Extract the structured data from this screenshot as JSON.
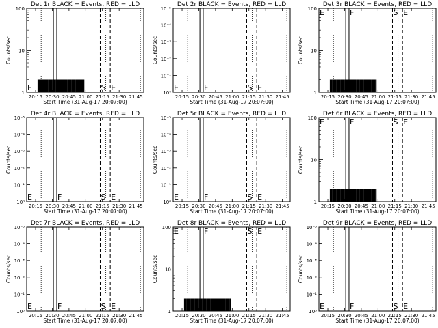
{
  "figure": {
    "panel_titles": [
      "Det 1r BLACK = Events, RED = LLD",
      "Det 2r BLACK = Events, RED = LLD",
      "Det 3r BLACK = Events, RED = LLD",
      "Det 4r BLACK = Events, RED = LLD",
      "Det 5r BLACK = Events, RED = LLD",
      "Det 6r BLACK = Events, RED = LLD",
      "Det 7r BLACK = Events, RED = LLD",
      "Det 8r BLACK = Events, RED = LLD",
      "Det 9r BLACK = Events, RED = LLD"
    ],
    "xlabel": "Start Time (31-Aug-17 20:07:00)",
    "ylabel": "Counts/sec",
    "xticklabels": [
      "20:15",
      "20:30",
      "20:45",
      "21:00",
      "21:15",
      "21:30",
      "21:45"
    ],
    "marker_letters": {
      "E": "E",
      "F": "F",
      "S": "S"
    },
    "colors": {
      "events": "#000000",
      "lld": "#ff0000",
      "background": "#ffffff"
    }
  },
  "chart_data": [
    {
      "panel": "Det 1r",
      "type": "line",
      "yscale": "log",
      "ylim": [
        1,
        100
      ],
      "xlim_minutes": [
        0,
        105
      ],
      "yticklabels": [
        "1",
        "10",
        "100"
      ],
      "markers": [
        {
          "letter": "E",
          "time": 0
        },
        {
          "letter": "F",
          "time": 27
        },
        {
          "letter": "S",
          "time": 66
        },
        {
          "letter": "E",
          "time": 75
        }
      ],
      "dotted_lines": [
        13,
        71,
        102
      ],
      "solid_lines": [
        24,
        27
      ],
      "dashed_lines": [
        66,
        75
      ],
      "series": [
        {
          "segments": [
            {
              "start": 10,
              "end": 15,
              "level": 2
            },
            {
              "start": 15,
              "end": 30,
              "level": 2
            },
            {
              "start": 30,
              "end": 42,
              "level": 2
            },
            {
              "start": 42,
              "end": 52,
              "level": 2
            }
          ]
        }
      ]
    },
    {
      "panel": "Det 2r",
      "type": "line",
      "yscale": "log",
      "ylim": [
        1,
        100
      ],
      "xlim_minutes": [
        0,
        105
      ],
      "yticklabels": [
        "10⁰",
        "10⁻¹",
        "10⁻²",
        "10⁻³",
        "10⁻⁴",
        "10⁻⁵"
      ],
      "markers": [
        {
          "letter": "E",
          "time": 0
        },
        {
          "letter": "F",
          "time": 27
        },
        {
          "letter": "S",
          "time": 66
        },
        {
          "letter": "E",
          "time": 75
        }
      ],
      "dotted_lines": [
        13,
        71,
        102
      ],
      "solid_lines": [
        24,
        27
      ],
      "dashed_lines": [
        66,
        75
      ],
      "series": []
    },
    {
      "panel": "Det 3r",
      "type": "line",
      "yscale": "log",
      "ylim": [
        1,
        100
      ],
      "xlim_minutes": [
        0,
        105
      ],
      "yticklabels": [
        "1",
        "10",
        "100"
      ],
      "markers": [
        {
          "letter": "E",
          "time": 0
        },
        {
          "letter": "F",
          "time": 27
        },
        {
          "letter": "S",
          "time": 66
        },
        {
          "letter": "E",
          "time": 75
        }
      ],
      "dotted_lines": [
        13,
        71,
        102
      ],
      "solid_lines": [
        24,
        27
      ],
      "dashed_lines": [
        66,
        75
      ],
      "series": [
        {
          "segments": [
            {
              "start": 10,
              "end": 15,
              "level": 2
            },
            {
              "start": 15,
              "end": 30,
              "level": 2
            },
            {
              "start": 30,
              "end": 42,
              "level": 2
            },
            {
              "start": 42,
              "end": 52,
              "level": 2
            }
          ]
        }
      ]
    },
    {
      "panel": "Det 4r",
      "type": "line",
      "yscale": "log",
      "ylim": [
        1,
        100
      ],
      "xlim_minutes": [
        0,
        105
      ],
      "yticklabels": [
        "10⁰",
        "10⁻¹",
        "10⁻²",
        "10⁻³",
        "10⁻⁴",
        "10⁻⁵"
      ],
      "markers": [
        {
          "letter": "E",
          "time": 0
        },
        {
          "letter": "F",
          "time": 27
        },
        {
          "letter": "S",
          "time": 66
        },
        {
          "letter": "E",
          "time": 75
        }
      ],
      "dotted_lines": [
        13,
        71,
        102
      ],
      "solid_lines": [
        24,
        27
      ],
      "dashed_lines": [
        66,
        75
      ],
      "series": []
    },
    {
      "panel": "Det 5r",
      "type": "line",
      "yscale": "log",
      "ylim": [
        1,
        100
      ],
      "xlim_minutes": [
        0,
        105
      ],
      "yticklabels": [
        "10⁰",
        "10⁻¹",
        "10⁻²",
        "10⁻³",
        "10⁻⁴",
        "10⁻⁵"
      ],
      "markers": [
        {
          "letter": "E",
          "time": 0
        },
        {
          "letter": "F",
          "time": 27
        },
        {
          "letter": "S",
          "time": 66
        },
        {
          "letter": "E",
          "time": 75
        }
      ],
      "dotted_lines": [
        13,
        71,
        102
      ],
      "solid_lines": [
        24,
        27
      ],
      "dashed_lines": [
        66,
        75
      ],
      "series": []
    },
    {
      "panel": "Det 6r",
      "type": "line",
      "yscale": "log",
      "ylim": [
        1,
        100
      ],
      "xlim_minutes": [
        0,
        105
      ],
      "yticklabels": [
        "1",
        "10",
        "100"
      ],
      "markers": [
        {
          "letter": "E",
          "time": 0
        },
        {
          "letter": "F",
          "time": 27
        },
        {
          "letter": "S",
          "time": 66
        },
        {
          "letter": "E",
          "time": 75
        }
      ],
      "dotted_lines": [
        13,
        71,
        102
      ],
      "solid_lines": [
        24,
        27
      ],
      "dashed_lines": [
        66,
        75
      ],
      "series": [
        {
          "segments": [
            {
              "start": 10,
              "end": 15,
              "level": 2
            },
            {
              "start": 15,
              "end": 30,
              "level": 2
            },
            {
              "start": 30,
              "end": 42,
              "level": 2
            },
            {
              "start": 42,
              "end": 52,
              "level": 2
            }
          ]
        }
      ]
    },
    {
      "panel": "Det 7r",
      "type": "line",
      "yscale": "log",
      "ylim": [
        1,
        100
      ],
      "xlim_minutes": [
        0,
        105
      ],
      "yticklabels": [
        "10⁰",
        "10⁻¹",
        "10⁻²",
        "10⁻³",
        "10⁻⁴",
        "10⁻⁵"
      ],
      "markers": [
        {
          "letter": "E",
          "time": 0
        },
        {
          "letter": "F",
          "time": 27
        },
        {
          "letter": "S",
          "time": 66
        },
        {
          "letter": "E",
          "time": 75
        }
      ],
      "dotted_lines": [
        13,
        71,
        102
      ],
      "solid_lines": [
        24,
        27
      ],
      "dashed_lines": [
        66,
        75
      ],
      "series": []
    },
    {
      "panel": "Det 8r",
      "type": "line",
      "yscale": "log",
      "ylim": [
        1,
        100
      ],
      "xlim_minutes": [
        0,
        105
      ],
      "yticklabels": [
        "1",
        "10",
        "100"
      ],
      "markers": [
        {
          "letter": "E",
          "time": 0
        },
        {
          "letter": "F",
          "time": 27
        },
        {
          "letter": "S",
          "time": 66
        },
        {
          "letter": "E",
          "time": 75
        }
      ],
      "dotted_lines": [
        13,
        71,
        102
      ],
      "solid_lines": [
        24,
        27
      ],
      "dashed_lines": [
        66,
        75
      ],
      "series": [
        {
          "segments": [
            {
              "start": 10,
              "end": 15,
              "level": 2
            },
            {
              "start": 15,
              "end": 30,
              "level": 2
            },
            {
              "start": 30,
              "end": 42,
              "level": 2
            },
            {
              "start": 42,
              "end": 52,
              "level": 2
            }
          ]
        }
      ]
    },
    {
      "panel": "Det 9r",
      "type": "line",
      "yscale": "log",
      "ylim": [
        1,
        100
      ],
      "xlim_minutes": [
        0,
        105
      ],
      "yticklabels": [
        "10⁰",
        "10⁻¹",
        "10⁻²",
        "10⁻³",
        "10⁻⁴",
        "10⁻⁵"
      ],
      "markers": [
        {
          "letter": "E",
          "time": 0
        },
        {
          "letter": "F",
          "time": 27
        },
        {
          "letter": "S",
          "time": 66
        },
        {
          "letter": "E",
          "time": 75
        }
      ],
      "dotted_lines": [
        13,
        71,
        102
      ],
      "solid_lines": [
        24,
        27
      ],
      "dashed_lines": [
        66,
        75
      ],
      "series": []
    }
  ]
}
